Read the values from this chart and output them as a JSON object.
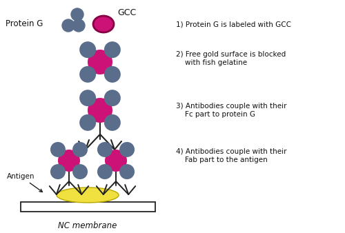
{
  "bg_color": "#ffffff",
  "protein_g_color": "#5a6e8c",
  "gcc_color": "#cc1177",
  "antigen_color": "#f0e040",
  "antigen_edge": "#b8a800",
  "line_color": "#222222",
  "text_color": "#111111",
  "labels": {
    "protein_g": "Protein G",
    "gcc": "GCC",
    "step1": "1) Protein G is labeled with GCC",
    "step2": "2) Free gold surface is blocked\n    with fish gelatine",
    "step3": "3) Antibodies couple with their\n    Fc part to protein G",
    "step4": "4) Antibodies couple with their\n    Fab part to the antigen",
    "antigen": "Antigen",
    "membrane": "NC membrane"
  },
  "figsize": [
    5.0,
    3.38
  ],
  "dpi": 100
}
